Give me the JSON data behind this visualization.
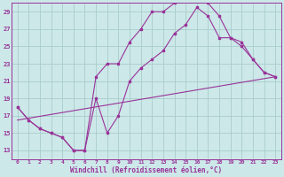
{
  "xlabel": "Windchill (Refroidissement éolien,°C)",
  "bg_color": "#cce8e8",
  "grid_color": "#aacccc",
  "line_color": "#993399",
  "xlim_min": -0.5,
  "xlim_max": 23.5,
  "ylim_min": 12,
  "ylim_max": 30,
  "yticks": [
    13,
    15,
    17,
    19,
    21,
    23,
    25,
    27,
    29
  ],
  "xticks": [
    0,
    1,
    2,
    3,
    4,
    5,
    6,
    7,
    8,
    9,
    10,
    11,
    12,
    13,
    14,
    15,
    16,
    17,
    18,
    19,
    20,
    21,
    22,
    23
  ],
  "line1_x": [
    0,
    1,
    2,
    3,
    4,
    5,
    6,
    7,
    8,
    9,
    10,
    11,
    12,
    13,
    14,
    15,
    16,
    17,
    18,
    19,
    20,
    21,
    22,
    23
  ],
  "line1_y": [
    18.0,
    16.5,
    15.5,
    15.0,
    14.5,
    13.0,
    13.0,
    21.5,
    23.0,
    23.0,
    25.5,
    27.0,
    29.0,
    29.0,
    30.0,
    30.5,
    30.5,
    30.0,
    28.5,
    26.0,
    25.0,
    23.5,
    22.0,
    21.5
  ],
  "line2_x": [
    0,
    1,
    2,
    3,
    4,
    5,
    6,
    7,
    8,
    9,
    10,
    11,
    12,
    13,
    14,
    15,
    16,
    17,
    18,
    19,
    20,
    21,
    22,
    23
  ],
  "line2_y": [
    18.0,
    16.5,
    15.5,
    15.0,
    14.5,
    13.0,
    13.0,
    19.0,
    15.0,
    17.0,
    21.0,
    22.5,
    23.5,
    24.5,
    26.5,
    27.5,
    29.5,
    28.5,
    26.0,
    26.0,
    25.5,
    23.5,
    22.0,
    21.5
  ],
  "line3_x": [
    0,
    23
  ],
  "line3_y": [
    16.5,
    21.5
  ]
}
